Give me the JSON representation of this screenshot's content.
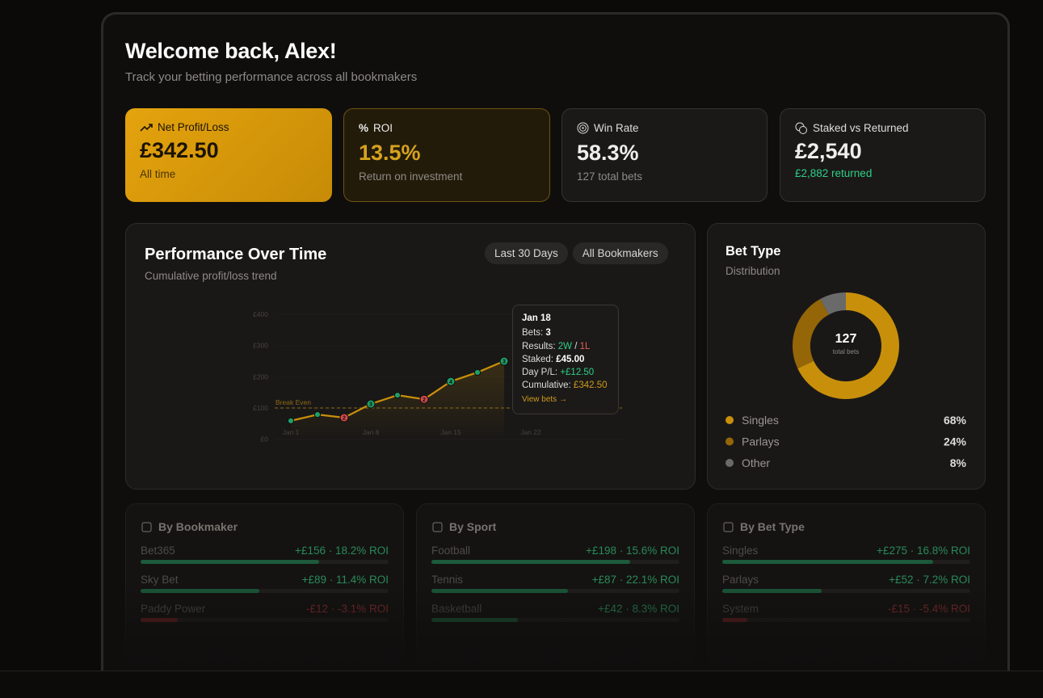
{
  "header": {
    "title": "Welcome back, Alex!",
    "subtitle": "Track your betting performance across all bookmakers"
  },
  "stats": [
    {
      "label": "Net Profit/Loss",
      "value": "£342.50",
      "note": "All time"
    },
    {
      "label": "ROI",
      "value": "13.5%",
      "note": "Return on investment"
    },
    {
      "label": "Win Rate",
      "value": "58.3%",
      "note": "127 total bets"
    },
    {
      "label": "Staked vs Returned",
      "value": "£2,540",
      "note": "£2,882 returned"
    }
  ],
  "performance": {
    "title": "Performance Over Time",
    "subtitle": "Cumulative profit/loss trend",
    "filters": [
      "Last 30 Days",
      "All Bookmakers"
    ],
    "chart_data": {
      "type": "line",
      "categories": [
        "Jan 1",
        null,
        null,
        "Jan 8",
        null,
        null,
        "Jan 15",
        null,
        null,
        "Jan 22"
      ],
      "values": [
        59,
        79,
        69,
        113,
        141,
        128,
        185,
        214,
        250,
        null
      ],
      "color": "#c8900a",
      "point_colors": [
        "#1f9e68",
        "#1f9e68",
        "#d24b4b",
        "#1f9e68",
        "#1f9e68",
        "#d24b4b",
        "#1f9e68",
        "#1f9e68",
        "#1f9e68",
        "#1f9e68"
      ],
      "point_labels": [
        null,
        null,
        "2",
        "3",
        null,
        "2",
        "4",
        null,
        "3",
        null
      ],
      "ylim": [
        0,
        400
      ],
      "yticks": [
        {
          "value": 0,
          "label": "£0"
        },
        {
          "value": 100,
          "label": "£100"
        },
        {
          "value": 200,
          "label": "£200"
        },
        {
          "value": 300,
          "label": "£300"
        },
        {
          "value": 400,
          "label": "£400"
        }
      ],
      "grid": true,
      "annotation": {
        "value": 100,
        "label": "Break Even"
      }
    },
    "tooltip": {
      "date": "Jan 18",
      "bets_label": "Bets:",
      "bets": "3",
      "results_label": "Results:",
      "wins": "2W",
      "sep": "/",
      "losses": "1L",
      "staked_label": "Staked:",
      "staked": "£45.00",
      "day_label": "Day P/L:",
      "day": "+£12.50",
      "cum_label": "Cumulative:",
      "cum": "£342.50",
      "link": "View bets →"
    }
  },
  "bet_type": {
    "title": "Bet Type",
    "subtitle": "Distribution",
    "total": 127,
    "total_label": "total bets",
    "chart_data": {
      "type": "pie",
      "categories": [
        "Singles",
        "Parlays",
        "Other"
      ],
      "values": [
        68,
        24,
        8
      ],
      "value_labels": [
        "68%",
        "24%",
        "8%"
      ],
      "colors": [
        "#c8900a",
        "#946608",
        "#6a6a6a"
      ]
    }
  },
  "breakdowns": [
    {
      "title": "By Bookmaker",
      "rows": [
        {
          "name": "Bet365",
          "summary": "+£156 · 18.2% ROI"
        },
        {
          "name": "Sky Bet",
          "summary": "+£89 · 11.4% ROI"
        },
        {
          "name": "Paddy Power",
          "summary": "-£12 · -3.1% ROI"
        }
      ]
    },
    {
      "title": "By Sport",
      "rows": [
        {
          "name": "Football",
          "summary": "+£198 · 15.6% ROI"
        },
        {
          "name": "Tennis",
          "summary": "+£87 · 22.1% ROI"
        },
        {
          "name": "Basketball",
          "summary": "+£42 · 8.3% ROI"
        }
      ]
    },
    {
      "title": "By Bet Type",
      "rows": [
        {
          "name": "Singles",
          "summary": "+£275 · 16.8% ROI"
        },
        {
          "name": "Parlays",
          "summary": "+£52 · 7.2% ROI"
        },
        {
          "name": "System",
          "summary": "-£15 · -5.4% ROI"
        }
      ]
    }
  ]
}
